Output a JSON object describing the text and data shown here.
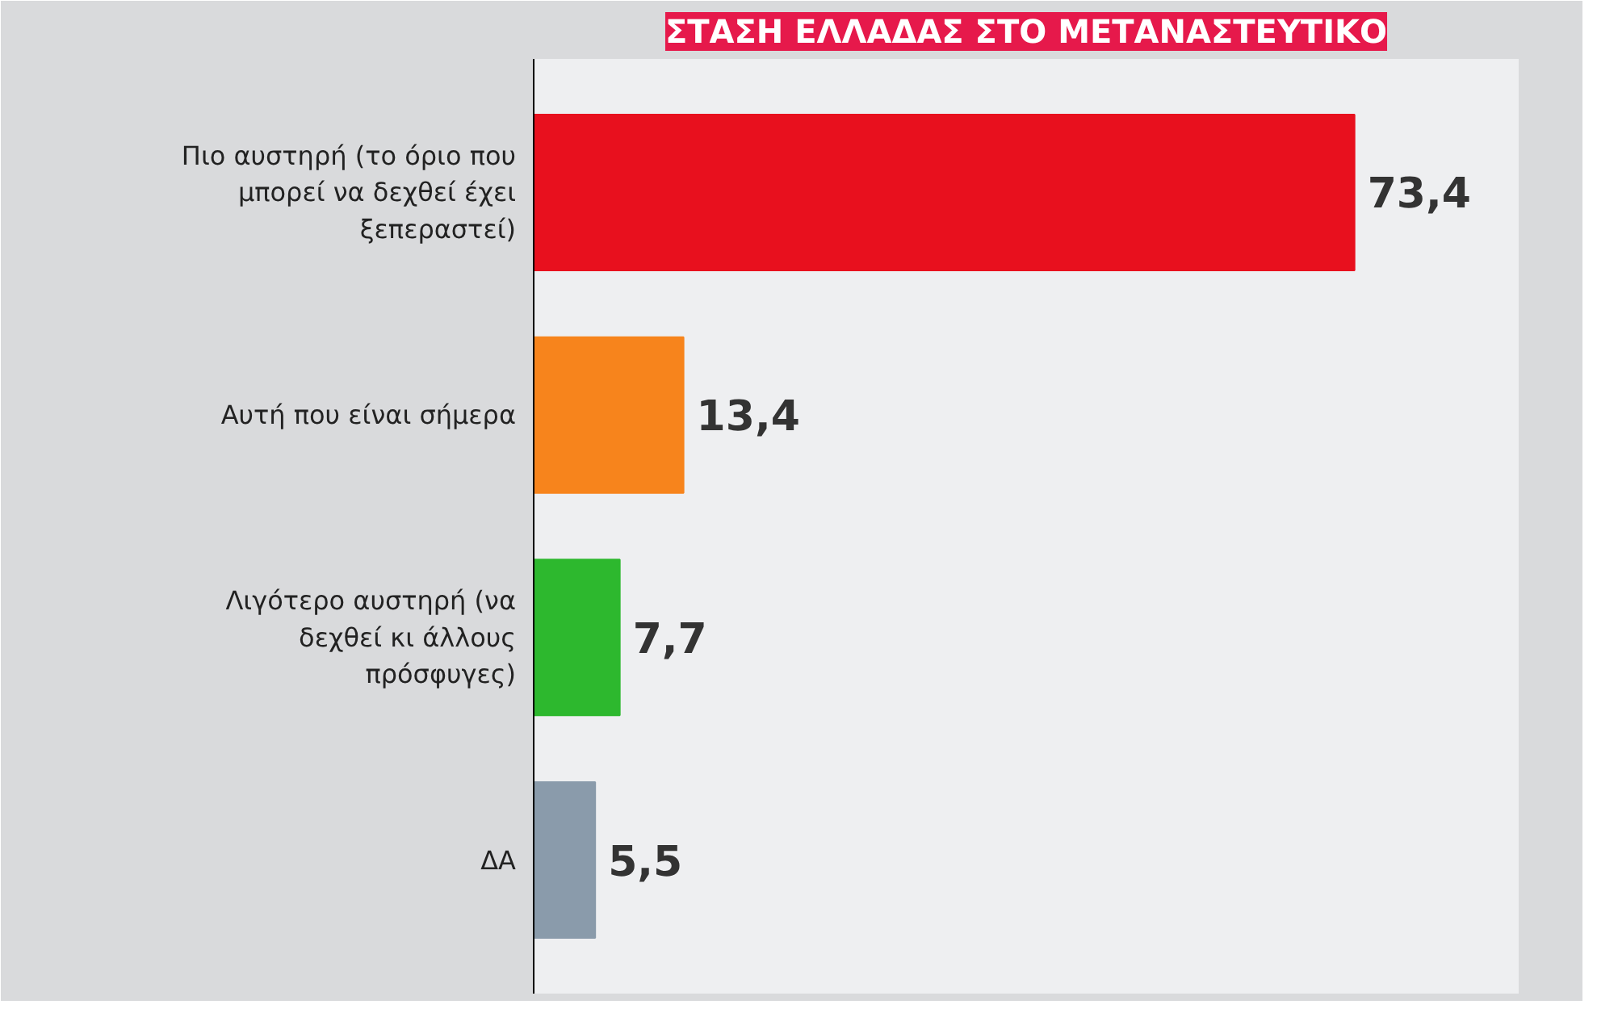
{
  "chart_data": {
    "type": "bar",
    "orientation": "horizontal",
    "title": "ΣΤΑΣΗ ΕΛΛΑΔΑΣ ΣΤΟ ΜΕΤΑΝΑΣΤΕΥΤΙΚΟ",
    "categories": [
      "Πιο αυστηρή (το όριο που μπορεί να δεχθεί έχει ξεπεραστεί)",
      "Αυτή που είναι σήμερα",
      "Λιγότερο αυστηρή (να δεχθεί κι άλλους πρόσφυγες)",
      "ΔΑ"
    ],
    "values": [
      73.4,
      13.4,
      7.7,
      5.5
    ],
    "colors": [
      "#e8101e",
      "#f7841c",
      "#2db82e",
      "#8a9bab"
    ],
    "value_labels": [
      "73,4",
      "13,4",
      "7,7",
      "5,5"
    ]
  }
}
